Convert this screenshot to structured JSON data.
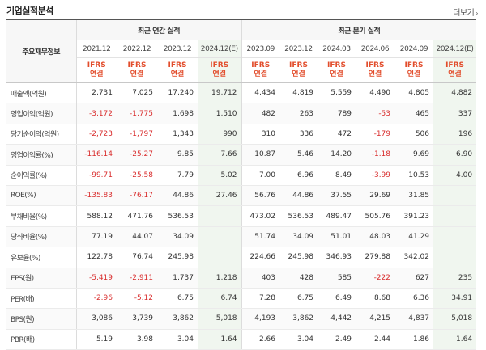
{
  "header": {
    "title": "기업실적분석",
    "more_label": "더보기"
  },
  "table": {
    "row_header": "주요재무정보",
    "group_annual": "최근 연간 실적",
    "group_quarter": "최근 분기 실적",
    "periods": [
      "2021.12",
      "2022.12",
      "2023.12",
      "2024.12(E)",
      "2023.09",
      "2023.12",
      "2024.03",
      "2024.06",
      "2024.09",
      "2024.12(E)"
    ],
    "ifrs_top": "IFRS",
    "ifrs_bottom": "연결",
    "rows": [
      {
        "label": "매출액(억원)",
        "values": [
          "2,731",
          "7,025",
          "17,240",
          "19,712",
          "4,434",
          "4,819",
          "5,559",
          "4,490",
          "4,805",
          "4,882"
        ]
      },
      {
        "label": "영업이익(억원)",
        "values": [
          "-3,172",
          "-1,775",
          "1,698",
          "1,510",
          "482",
          "263",
          "789",
          "-53",
          "465",
          "337"
        ]
      },
      {
        "label": "당기순이익(억원)",
        "values": [
          "-2,723",
          "-1,797",
          "1,343",
          "990",
          "310",
          "336",
          "472",
          "-179",
          "506",
          "196"
        ]
      },
      {
        "label": "영업이익률(%)",
        "values": [
          "-116.14",
          "-25.27",
          "9.85",
          "7.66",
          "10.87",
          "5.46",
          "14.20",
          "-1.18",
          "9.69",
          "6.90"
        ]
      },
      {
        "label": "순이익률(%)",
        "values": [
          "-99.71",
          "-25.58",
          "7.79",
          "5.02",
          "7.00",
          "6.96",
          "8.49",
          "-3.99",
          "10.53",
          "4.00"
        ]
      },
      {
        "label": "ROE(%)",
        "values": [
          "-135.83",
          "-76.17",
          "44.86",
          "27.46",
          "56.76",
          "44.86",
          "37.55",
          "29.69",
          "31.85",
          ""
        ]
      },
      {
        "label": "부채비율(%)",
        "values": [
          "588.12",
          "471.76",
          "536.53",
          "",
          "473.02",
          "536.53",
          "489.47",
          "505.76",
          "391.23",
          ""
        ]
      },
      {
        "label": "당좌비율(%)",
        "values": [
          "77.19",
          "44.07",
          "34.09",
          "",
          "51.74",
          "34.09",
          "51.01",
          "48.03",
          "41.29",
          ""
        ]
      },
      {
        "label": "유보율(%)",
        "values": [
          "122.78",
          "76.74",
          "245.98",
          "",
          "224.66",
          "245.98",
          "346.93",
          "279.88",
          "342.02",
          ""
        ]
      },
      {
        "label": "EPS(원)",
        "values": [
          "-5,419",
          "-2,911",
          "1,737",
          "1,218",
          "403",
          "428",
          "585",
          "-222",
          "627",
          "235"
        ]
      },
      {
        "label": "PER(배)",
        "values": [
          "-2.96",
          "-5.12",
          "6.75",
          "6.74",
          "7.28",
          "6.75",
          "6.49",
          "8.68",
          "6.36",
          "34.91"
        ]
      },
      {
        "label": "BPS(원)",
        "values": [
          "3,086",
          "3,739",
          "3,862",
          "5,018",
          "4,193",
          "3,862",
          "4,442",
          "4,215",
          "4,837",
          "5,018"
        ]
      },
      {
        "label": "PBR(배)",
        "values": [
          "5.19",
          "3.98",
          "3.04",
          "1.64",
          "2.66",
          "3.04",
          "2.49",
          "2.44",
          "1.86",
          "1.64"
        ]
      }
    ]
  },
  "colors": {
    "negative": "#d92d2d",
    "ifrs": "#e24d2c",
    "estimate_bg": "#f0f6ef"
  }
}
